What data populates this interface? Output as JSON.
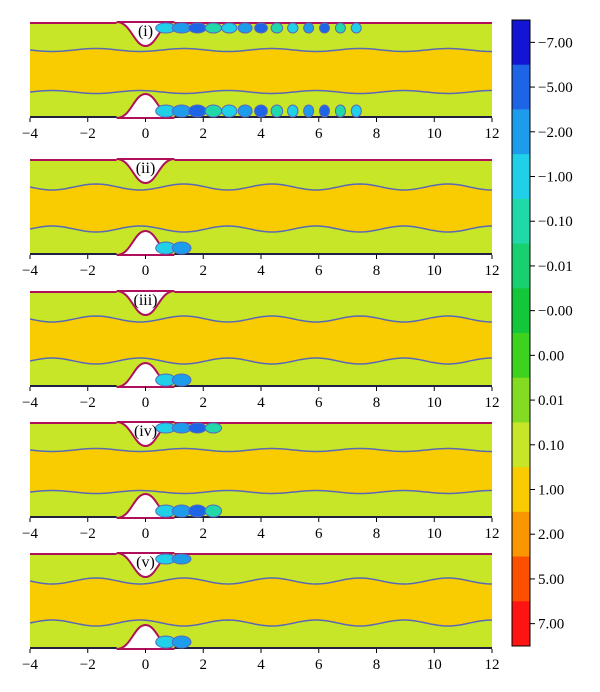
{
  "chart_data": {
    "type": "heatmap",
    "x_ticks": [
      -4,
      -2,
      0,
      2,
      4,
      6,
      8,
      10,
      12
    ],
    "x_tick_labels": [
      "−4",
      "−2",
      "0",
      "2",
      "4",
      "6",
      "8",
      "10",
      "12"
    ],
    "xlim": [
      -4,
      12
    ],
    "colorbar": {
      "levels": [
        "−7.00",
        "−5.00",
        "−2.00",
        "−1.00",
        "−0.10",
        "−0.01",
        "−0.00",
        "0.00",
        "0.01",
        "0.10",
        "1.00",
        "2.00",
        "5.00",
        "7.00"
      ],
      "colors": [
        "#1414d4",
        "#1e64e6",
        "#1e9cec",
        "#20d0e8",
        "#20d8a8",
        "#18d070",
        "#12c83a",
        "#3cd21e",
        "#84dc22",
        "#c8e628",
        "#f8cc00",
        "#fa9600",
        "#fc5000",
        "#ff1414"
      ]
    },
    "panels": [
      {
        "label": "(i)",
        "wavy": false,
        "vortex_top": true,
        "vortex_bottom": true,
        "vortex_extent_x": 7.5
      },
      {
        "label": "(ii)",
        "wavy": true,
        "vortex_top": false,
        "vortex_bottom": true,
        "vortex_extent_x": 1.4
      },
      {
        "label": "(iii)",
        "wavy": true,
        "vortex_top": false,
        "vortex_bottom": true,
        "vortex_extent_x": 1.8
      },
      {
        "label": "(iv)",
        "wavy": false,
        "vortex_top": true,
        "vortex_bottom": true,
        "vortex_extent_x": 2.6
      },
      {
        "label": "(v)",
        "wavy": true,
        "vortex_top": true,
        "vortex_bottom": true,
        "vortex_extent_x": 1.6
      }
    ]
  }
}
